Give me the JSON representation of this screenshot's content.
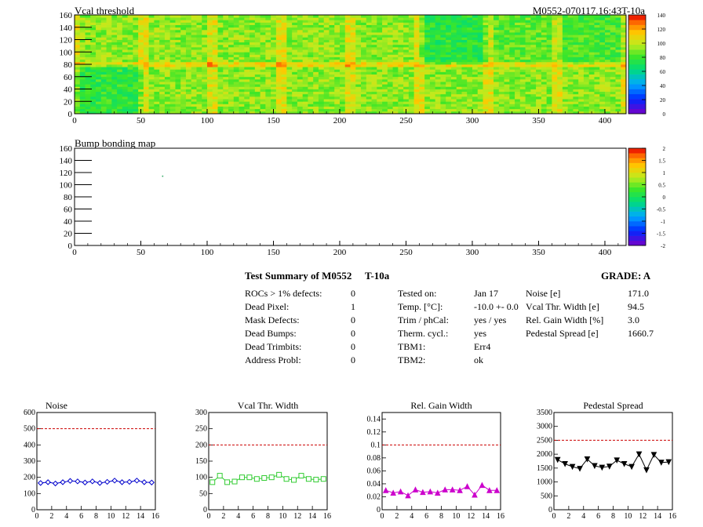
{
  "header": {
    "module_id": "M0552-070117.16:43T-10a"
  },
  "map_tick_labels": {
    "x": [
      "0",
      "50",
      "100",
      "150",
      "200",
      "250",
      "300",
      "350",
      "400"
    ],
    "y": [
      "0",
      "20",
      "40",
      "60",
      "80",
      "100",
      "120",
      "140",
      "160"
    ]
  },
  "vcal_scale_labels": [
    "0",
    "20",
    "40",
    "60",
    "80",
    "100",
    "120",
    "140"
  ],
  "bump_scale_labels": [
    "-2",
    "-1.5",
    "-1",
    "-0.5",
    "0",
    "0.5",
    "1",
    "1.5",
    "2"
  ],
  "summary": {
    "title": "Test Summary of M0552",
    "temp_tag": "T-10a",
    "grade": "GRADE:  A",
    "defects": [
      {
        "label": "ROCs > 1% defects:",
        "value": "0"
      },
      {
        "label": "Dead Pixel:",
        "value": "1"
      },
      {
        "label": "Mask Defects:",
        "value": "0"
      },
      {
        "label": "Dead Bumps:",
        "value": "0"
      },
      {
        "label": "Dead Trimbits:",
        "value": "0"
      },
      {
        "label": "Address Probl:",
        "value": "0"
      }
    ],
    "conditions": [
      {
        "label": "Tested on:",
        "value": "Jan 17"
      },
      {
        "label": "Temp. [°C]:",
        "value": "-10.0 +- 0.0"
      },
      {
        "label": "Trim / phCal:",
        "value": "yes / yes"
      },
      {
        "label": "Therm. cycl.:",
        "value": "yes"
      },
      {
        "label": "TBM1:",
        "value": "Err4"
      },
      {
        "label": "TBM2:",
        "value": "ok"
      }
    ],
    "results": [
      {
        "label": "Noise [e]",
        "value": "171.0"
      },
      {
        "label": "Vcal Thr. Width [e]",
        "value": "94.5"
      },
      {
        "label": "Rel. Gain Width [%]",
        "value": "3.0"
      },
      {
        "label": "Pedestal Spread [e]",
        "value": "1660.7"
      }
    ]
  },
  "colors": {
    "noise": "#0000cc",
    "vcal_width": "#33cc33",
    "gain_width": "#cc00cc",
    "pedestal": "#000000",
    "limit_line": "#cc0000"
  },
  "chart_data": [
    {
      "type": "heatmap",
      "title": "Vcal threshold",
      "xlim": [
        0,
        416
      ],
      "ylim": [
        0,
        160
      ],
      "zlim": [
        0,
        145
      ],
      "mean_level": 95,
      "palette": "rainbow",
      "region_level_overrides": [
        {
          "x": [
            0,
            52
          ],
          "y": [
            0,
            80
          ],
          "level": 80
        },
        {
          "x": [
            260,
            312
          ],
          "y": [
            80,
            160
          ],
          "level": 78
        },
        {
          "x": [
            312,
            364
          ],
          "y": [
            80,
            160
          ],
          "level": 88
        },
        {
          "x": [
            364,
            416
          ],
          "y": [
            80,
            160
          ],
          "level": 85
        }
      ]
    },
    {
      "type": "heatmap",
      "title": "Bump bonding map",
      "xlim": [
        0,
        416
      ],
      "ylim": [
        0,
        160
      ],
      "zlim": [
        -2,
        2
      ],
      "points": [
        {
          "x": 66,
          "y": 115
        }
      ]
    },
    {
      "type": "line",
      "title": "Noise",
      "x": [
        0,
        1,
        2,
        3,
        4,
        5,
        6,
        7,
        8,
        9,
        10,
        11,
        12,
        13,
        14,
        15
      ],
      "values": [
        165,
        170,
        162,
        170,
        178,
        175,
        168,
        175,
        165,
        172,
        180,
        170,
        172,
        180,
        170,
        168
      ],
      "limit": 500,
      "xlim": [
        0,
        16
      ],
      "ylim": [
        0,
        600
      ],
      "yticks": [
        "0",
        "100",
        "200",
        "300",
        "400",
        "500",
        "600"
      ],
      "xticks": [
        "0",
        "2",
        "4",
        "6",
        "8",
        "10",
        "12",
        "14",
        "16"
      ],
      "marker": "diamond"
    },
    {
      "type": "line",
      "title": "Vcal Thr. Width",
      "x": [
        0,
        1,
        2,
        3,
        4,
        5,
        6,
        7,
        8,
        9,
        10,
        11,
        12,
        13,
        14,
        15
      ],
      "values": [
        85,
        105,
        85,
        87,
        100,
        100,
        95,
        98,
        100,
        108,
        95,
        92,
        105,
        95,
        93,
        95
      ],
      "limit": 200,
      "xlim": [
        0,
        16
      ],
      "ylim": [
        0,
        300
      ],
      "yticks": [
        "0",
        "50",
        "100",
        "150",
        "200",
        "250",
        "300"
      ],
      "xticks": [
        "0",
        "2",
        "4",
        "6",
        "8",
        "10",
        "12",
        "14",
        "16"
      ],
      "marker": "square"
    },
    {
      "type": "line",
      "title": "Rel. Gain Width",
      "x": [
        0,
        1,
        2,
        3,
        4,
        5,
        6,
        7,
        8,
        9,
        10,
        11,
        12,
        13,
        14,
        15
      ],
      "values": [
        0.03,
        0.026,
        0.028,
        0.022,
        0.031,
        0.027,
        0.028,
        0.026,
        0.031,
        0.031,
        0.03,
        0.036,
        0.023,
        0.038,
        0.03,
        0.03
      ],
      "limit": 0.1,
      "xlim": [
        0,
        16
      ],
      "ylim": [
        0,
        0.15
      ],
      "yticks": [
        "0",
        "0.02",
        "0.04",
        "0.06",
        "0.08",
        "0.1",
        "0.12",
        "0.14"
      ],
      "xticks": [
        "0",
        "2",
        "4",
        "6",
        "8",
        "10",
        "12",
        "14",
        "16"
      ],
      "marker": "triangle-up"
    },
    {
      "type": "line",
      "title": "Pedestal Spread",
      "x": [
        0,
        1,
        2,
        3,
        4,
        5,
        6,
        7,
        8,
        9,
        10,
        11,
        12,
        13,
        14,
        15
      ],
      "values": [
        1800,
        1650,
        1550,
        1480,
        1820,
        1580,
        1520,
        1560,
        1780,
        1650,
        1550,
        2000,
        1430,
        1980,
        1700,
        1720
      ],
      "limit": 2500,
      "xlim": [
        0,
        16
      ],
      "ylim": [
        0,
        3500
      ],
      "yticks": [
        "0",
        "500",
        "1000",
        "1500",
        "2000",
        "2500",
        "3000",
        "3500"
      ],
      "xticks": [
        "0",
        "2",
        "4",
        "6",
        "8",
        "10",
        "12",
        "14",
        "16"
      ],
      "marker": "triangle-down"
    }
  ]
}
